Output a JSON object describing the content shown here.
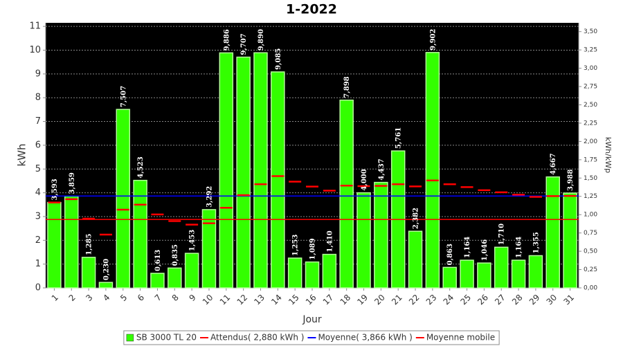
{
  "chart_data": {
    "type": "bar",
    "title": "1-2022",
    "x_label": "Jour",
    "y_label": "kWh",
    "y2_label": "kWh/kWp",
    "categories": [
      "1",
      "2",
      "3",
      "4",
      "5",
      "6",
      "7",
      "8",
      "9",
      "10",
      "11",
      "12",
      "13",
      "14",
      "15",
      "16",
      "17",
      "18",
      "19",
      "20",
      "21",
      "22",
      "23",
      "24",
      "25",
      "26",
      "27",
      "28",
      "29",
      "30",
      "31"
    ],
    "series": [
      {
        "name": "SB 3000 TL 20",
        "color": "#33ff00",
        "values": [
          3.593,
          3.859,
          1.285,
          0.23,
          7.507,
          4.523,
          0.613,
          0.835,
          1.453,
          3.292,
          9.886,
          9.707,
          9.89,
          9.085,
          1.253,
          1.089,
          1.41,
          7.898,
          4.0,
          4.437,
          5.761,
          2.382,
          9.902,
          0.863,
          1.164,
          1.046,
          1.71,
          1.164,
          1.355,
          4.667,
          3.988
        ],
        "value_labels": [
          "3,593",
          "3,859",
          "1,285",
          "0,230",
          "7,507",
          "4,523",
          "0,613",
          "0,835",
          "1,453",
          "3,292",
          "9,886",
          "9,707",
          "9,890",
          "9,085",
          "1,253",
          "1,089",
          "1,410",
          "7,898",
          "4,000",
          "4,437",
          "5,761",
          "2,382",
          "9,902",
          "0,863",
          "1,164",
          "1,046",
          "1,710",
          "1,164",
          "1,355",
          "4,667",
          "3,988"
        ]
      }
    ],
    "reference_lines": [
      {
        "name": "Attendus( 2,880 kWh )",
        "color": "#ff0000",
        "value": 2.88
      },
      {
        "name": "Moyenne( 3,866 kWh )",
        "color": "#0000ff",
        "value": 3.866
      }
    ],
    "moving_average": {
      "name": "Moyenne mobile",
      "color": "#ff0000",
      "values": [
        3.59,
        3.73,
        2.91,
        2.24,
        3.29,
        3.5,
        3.09,
        2.81,
        2.66,
        2.72,
        3.37,
        3.9,
        4.36,
        4.7,
        4.47,
        4.26,
        4.09,
        4.3,
        4.28,
        4.29,
        4.36,
        4.27,
        4.52,
        4.36,
        4.24,
        4.11,
        4.02,
        3.92,
        3.83,
        3.86,
        3.87
      ]
    },
    "ylim": [
      0,
      11.15
    ],
    "yticks": [
      0,
      1,
      2,
      3,
      4,
      5,
      6,
      7,
      8,
      9,
      10,
      11
    ],
    "y2lim": [
      0,
      3.62
    ],
    "y2ticks": [
      {
        "value": 0,
        "label": "0,00"
      },
      {
        "value": 0.25,
        "label": "0,25"
      },
      {
        "value": 0.5,
        "label": "0,50"
      },
      {
        "value": 0.75,
        "label": "0,75"
      },
      {
        "value": 1,
        "label": "1,00"
      },
      {
        "value": 1.25,
        "label": "1,25"
      },
      {
        "value": 1.5,
        "label": "1,50"
      },
      {
        "value": 1.75,
        "label": "1,75"
      },
      {
        "value": 2,
        "label": "2,00"
      },
      {
        "value": 2.25,
        "label": "2,25"
      },
      {
        "value": 2.5,
        "label": "2,50"
      },
      {
        "value": 2.75,
        "label": "2,75"
      },
      {
        "value": 3,
        "label": "3,00"
      },
      {
        "value": 3.25,
        "label": "3,25"
      },
      {
        "value": 3.5,
        "label": "3,50"
      }
    ],
    "grid": true,
    "legend": "bottom"
  }
}
